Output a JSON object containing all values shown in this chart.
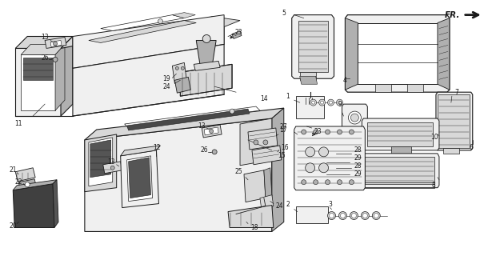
{
  "bg_color": "#ffffff",
  "line_color": "#1a1a1a",
  "fill_light": "#f0f0f0",
  "fill_mid": "#d8d8d8",
  "fill_dark": "#b0b0b0",
  "fill_darker": "#888888",
  "fr_label": "FR.",
  "figsize": [
    6.1,
    3.2
  ],
  "dpi": 100
}
